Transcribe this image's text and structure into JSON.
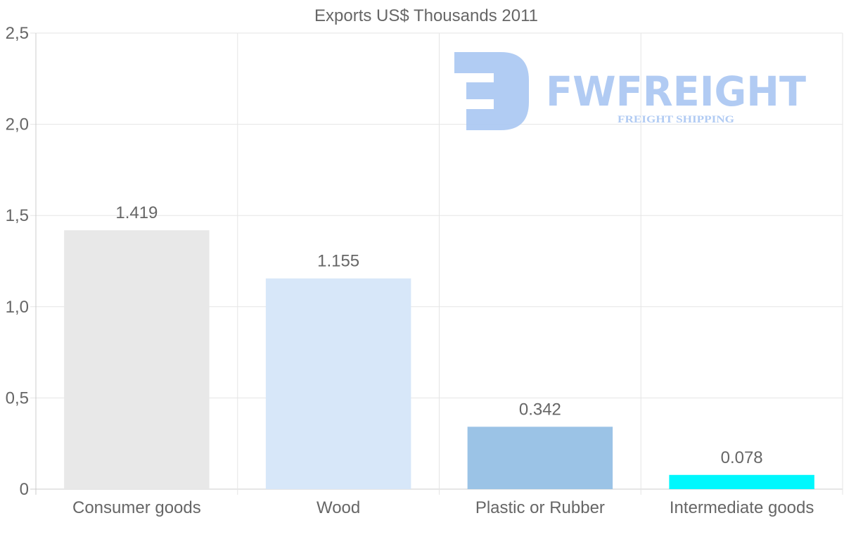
{
  "chart_data": {
    "type": "bar",
    "title": "Exports US$ Thousands 2011",
    "categories": [
      "Consumer goods",
      "Wood",
      "Plastic or Rubber",
      "Intermediate goods"
    ],
    "values": [
      1.419,
      1.155,
      0.342,
      0.078
    ],
    "value_labels": [
      "1.419",
      "1.155",
      "0.342",
      "0.078"
    ],
    "colors": [
      "#e8e8e8",
      "#d7e7f9",
      "#9bc3e6",
      "#00f7fd"
    ],
    "ylim": [
      0,
      2.5
    ],
    "yticks": [
      0,
      0.5,
      1.0,
      1.5,
      2.0,
      2.5
    ],
    "ytick_labels": [
      "0",
      "0,5",
      "1,0",
      "1,5",
      "2,0",
      "2,5"
    ],
    "xlabel": "",
    "ylabel": "",
    "grid": true,
    "legend": "none"
  },
  "watermark": {
    "brand": "FWFREIGHT",
    "tagline": "FREIGHT SHIPPING",
    "color": "#a9c6f2"
  }
}
